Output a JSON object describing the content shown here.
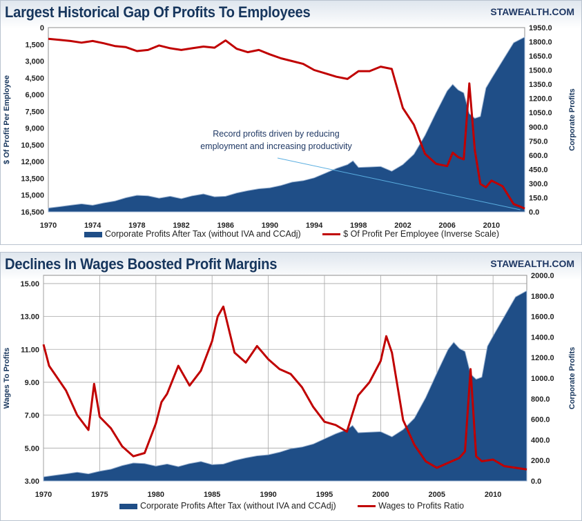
{
  "charts": {
    "top": {
      "title": "Largest Historical Gap Of Profits To Employees",
      "brand": "STAWEALTH.COM",
      "annotation_line1": "Record profits driven by reducing",
      "annotation_line2": "employment and increasing productivity",
      "ylabel_left": "$ Of Profit Per Employee",
      "ylabel_right": "Corporate Profits",
      "legend_area": "Corporate Profits After Tax (without IVA and CCAdj)",
      "legend_line": "$ Of Profit Per Employee (Inverse Scale)"
    },
    "bottom": {
      "title": "Declines In Wages Boosted Profit Margins",
      "brand": "STAWEALTH.COM",
      "ylabel_left": "Wages To Profits",
      "ylabel_right": "Corporate Profits",
      "legend_area": "Corporate Profits After Tax (without IVA and CCAdj)",
      "legend_line": "Wages to Profits Ratio"
    }
  },
  "colors": {
    "area": "#1f4e87",
    "line": "#c00000",
    "grid": "#a6a6a6",
    "title": "#17365d",
    "annotation": "#1f3864",
    "arrow": "#5aaee0"
  },
  "chart_data": [
    {
      "type": "area",
      "title": "Largest Historical Gap Of Profits To Employees",
      "x_ticks": [
        "1970",
        "1974",
        "1978",
        "1982",
        "1986",
        "1990",
        "1994",
        "1998",
        "2002",
        "2006",
        "2010"
      ],
      "xlim": [
        1970,
        2013
      ],
      "left_axis": {
        "label": "$ Of Profit Per Employee",
        "inverse": true,
        "ticks": [
          "0",
          "1,500",
          "3,000",
          "4,500",
          "6,000",
          "7,500",
          "9,000",
          "10,500",
          "12,000",
          "13,500",
          "15,000",
          "16,500"
        ],
        "ylim": [
          0,
          16500
        ]
      },
      "right_axis": {
        "label": "Corporate Profits",
        "ticks": [
          "0.0",
          "150.0",
          "300.0",
          "450.0",
          "600.0",
          "750.0",
          "900.0",
          "1050.0",
          "1200.0",
          "1350.0",
          "1500.0",
          "1650.0",
          "1800.0",
          "1950.0"
        ],
        "ylim": [
          0,
          1950
        ]
      },
      "series": [
        {
          "name": "Corporate Profits After Tax (without IVA and CCAdj)",
          "kind": "area",
          "axis": "right",
          "x": [
            1970,
            1971,
            1972,
            1973,
            1974,
            1975,
            1976,
            1977,
            1978,
            1979,
            1980,
            1981,
            1982,
            1983,
            1984,
            1985,
            1986,
            1987,
            1988,
            1989,
            1990,
            1991,
            1992,
            1993,
            1994,
            1995,
            1996,
            1997,
            1997.5,
            1998,
            1999,
            2000,
            2001,
            2002,
            2003,
            2004,
            2005,
            2006,
            2006.5,
            2007,
            2007.5,
            2008,
            2008.5,
            2009,
            2009.5,
            2010,
            2011,
            2012,
            2013
          ],
          "y": [
            40,
            55,
            70,
            85,
            70,
            95,
            115,
            150,
            175,
            170,
            145,
            165,
            140,
            170,
            190,
            160,
            165,
            200,
            225,
            245,
            255,
            280,
            315,
            330,
            360,
            410,
            460,
            500,
            540,
            470,
            475,
            480,
            430,
            500,
            610,
            810,
            1050,
            1280,
            1350,
            1290,
            1260,
            1040,
            990,
            1010,
            1310,
            1410,
            1600,
            1790,
            1850
          ]
        },
        {
          "name": "$ Of Profit Per Employee (Inverse Scale)",
          "kind": "line",
          "axis": "left",
          "x": [
            1970,
            1971,
            1972,
            1973,
            1974,
            1975,
            1976,
            1977,
            1978,
            1979,
            1980,
            1981,
            1982,
            1983,
            1984,
            1985,
            1986,
            1987,
            1988,
            1989,
            1990,
            1991,
            1992,
            1993,
            1994,
            1995,
            1996,
            1997,
            1998,
            1999,
            2000,
            2001,
            2002,
            2003,
            2004,
            2005,
            2006,
            2006.5,
            2007,
            2007.5,
            2008,
            2008.5,
            2009,
            2009.5,
            2010,
            2011,
            2012,
            2013
          ],
          "y": [
            1000,
            1100,
            1200,
            1350,
            1200,
            1400,
            1650,
            1750,
            2100,
            2000,
            1600,
            1850,
            2000,
            1850,
            1700,
            1800,
            1150,
            1900,
            2200,
            2000,
            2400,
            2750,
            3000,
            3250,
            3800,
            4100,
            4400,
            4600,
            3900,
            3900,
            3500,
            3700,
            7200,
            8700,
            11300,
            12200,
            12400,
            11200,
            11600,
            11800,
            5000,
            11000,
            14000,
            14300,
            13700,
            14200,
            15800,
            16200
          ]
        }
      ]
    },
    {
      "type": "area",
      "title": "Declines In Wages Boosted Profit Margins",
      "x_ticks": [
        "1970",
        "1975",
        "1980",
        "1985",
        "1990",
        "1995",
        "2000",
        "2005",
        "2010"
      ],
      "xlim": [
        1970,
        2013
      ],
      "left_axis": {
        "label": "Wages To Profits",
        "ticks": [
          "3.00",
          "5.00",
          "7.00",
          "9.00",
          "11.00",
          "13.00",
          "15.00"
        ],
        "ylim": [
          3,
          15.5
        ]
      },
      "right_axis": {
        "label": "Corporate Profits",
        "ticks": [
          "0.0",
          "200.0",
          "400.0",
          "600.0",
          "800.0",
          "1000.0",
          "1200.0",
          "1400.0",
          "1600.0",
          "1800.0",
          "2000.0"
        ],
        "ylim": [
          0,
          2000
        ]
      },
      "series": [
        {
          "name": "Corporate Profits After Tax (without IVA and CCAdj)",
          "kind": "area",
          "axis": "right",
          "x": [
            1970,
            1971,
            1972,
            1973,
            1974,
            1975,
            1976,
            1977,
            1978,
            1979,
            1980,
            1981,
            1982,
            1983,
            1984,
            1985,
            1986,
            1987,
            1988,
            1989,
            1990,
            1991,
            1992,
            1993,
            1994,
            1995,
            1996,
            1997,
            1997.5,
            1998,
            1999,
            2000,
            2001,
            2002,
            2003,
            2004,
            2005,
            2006,
            2006.5,
            2007,
            2007.5,
            2008,
            2008.5,
            2009,
            2009.5,
            2010,
            2011,
            2012,
            2013
          ],
          "y": [
            40,
            55,
            70,
            85,
            70,
            95,
            115,
            150,
            175,
            170,
            145,
            165,
            140,
            170,
            190,
            160,
            165,
            200,
            225,
            245,
            255,
            280,
            315,
            330,
            360,
            410,
            460,
            500,
            540,
            470,
            475,
            480,
            430,
            500,
            610,
            810,
            1050,
            1280,
            1350,
            1290,
            1260,
            1040,
            990,
            1010,
            1310,
            1410,
            1600,
            1790,
            1850
          ]
        },
        {
          "name": "Wages to Profits Ratio",
          "kind": "line",
          "axis": "left",
          "x": [
            1970,
            1970.5,
            1971,
            1972,
            1973,
            1974,
            1974.5,
            1975,
            1976,
            1977,
            1978,
            1979,
            1980,
            1980.5,
            1981,
            1982,
            1983,
            1984,
            1985,
            1985.5,
            1986,
            1987,
            1988,
            1989,
            1990,
            1991,
            1992,
            1993,
            1994,
            1995,
            1996,
            1997,
            1998,
            1999,
            2000,
            2000.5,
            2001,
            2002,
            2003,
            2004,
            2005,
            2006,
            2007,
            2007.5,
            2008,
            2008.5,
            2009,
            2010,
            2011,
            2012,
            2013
          ],
          "y": [
            11.3,
            10.0,
            9.5,
            8.5,
            7.0,
            6.1,
            8.9,
            6.9,
            6.2,
            5.1,
            4.5,
            4.7,
            6.5,
            7.8,
            8.3,
            10.0,
            8.8,
            9.7,
            11.5,
            13.0,
            13.6,
            10.8,
            10.2,
            11.2,
            10.4,
            9.8,
            9.5,
            8.7,
            7.5,
            6.6,
            6.4,
            6.0,
            8.2,
            9.0,
            10.3,
            11.8,
            10.8,
            6.7,
            5.2,
            4.2,
            3.8,
            4.1,
            4.4,
            4.8,
            9.8,
            4.5,
            4.2,
            4.3,
            3.9,
            3.8,
            3.7
          ]
        }
      ]
    }
  ]
}
